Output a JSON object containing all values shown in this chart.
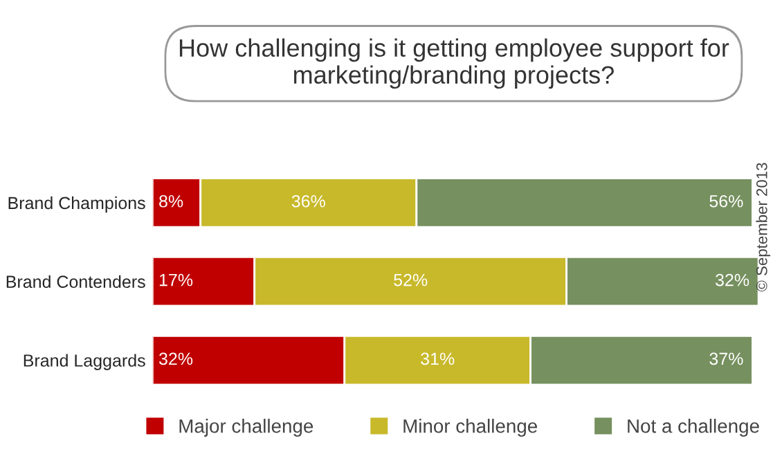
{
  "chart_data": {
    "type": "bar",
    "orientation": "horizontal",
    "stacked": true,
    "legend": "bottom",
    "grid": false,
    "title": "How challenging is it getting employee support for marketing/branding projects?",
    "categories": [
      "Brand Champions",
      "Brand Contenders",
      "Brand Laggards"
    ],
    "series": [
      {
        "name": "Major challenge",
        "color": "#c00000",
        "values": [
          8,
          17,
          32
        ],
        "value_labels": [
          "8%",
          "17%",
          "32%"
        ]
      },
      {
        "name": "Minor challenge",
        "color": "#c8b92b",
        "values": [
          36,
          52,
          31
        ],
        "value_labels": [
          "36%",
          "52%",
          "31%"
        ]
      },
      {
        "name": "Not a challenge",
        "color": "#76905f",
        "values": [
          56,
          32,
          37
        ],
        "value_labels": [
          "56%",
          "32%",
          "37%"
        ]
      }
    ],
    "annotations": [
      "© September 2013"
    ]
  }
}
